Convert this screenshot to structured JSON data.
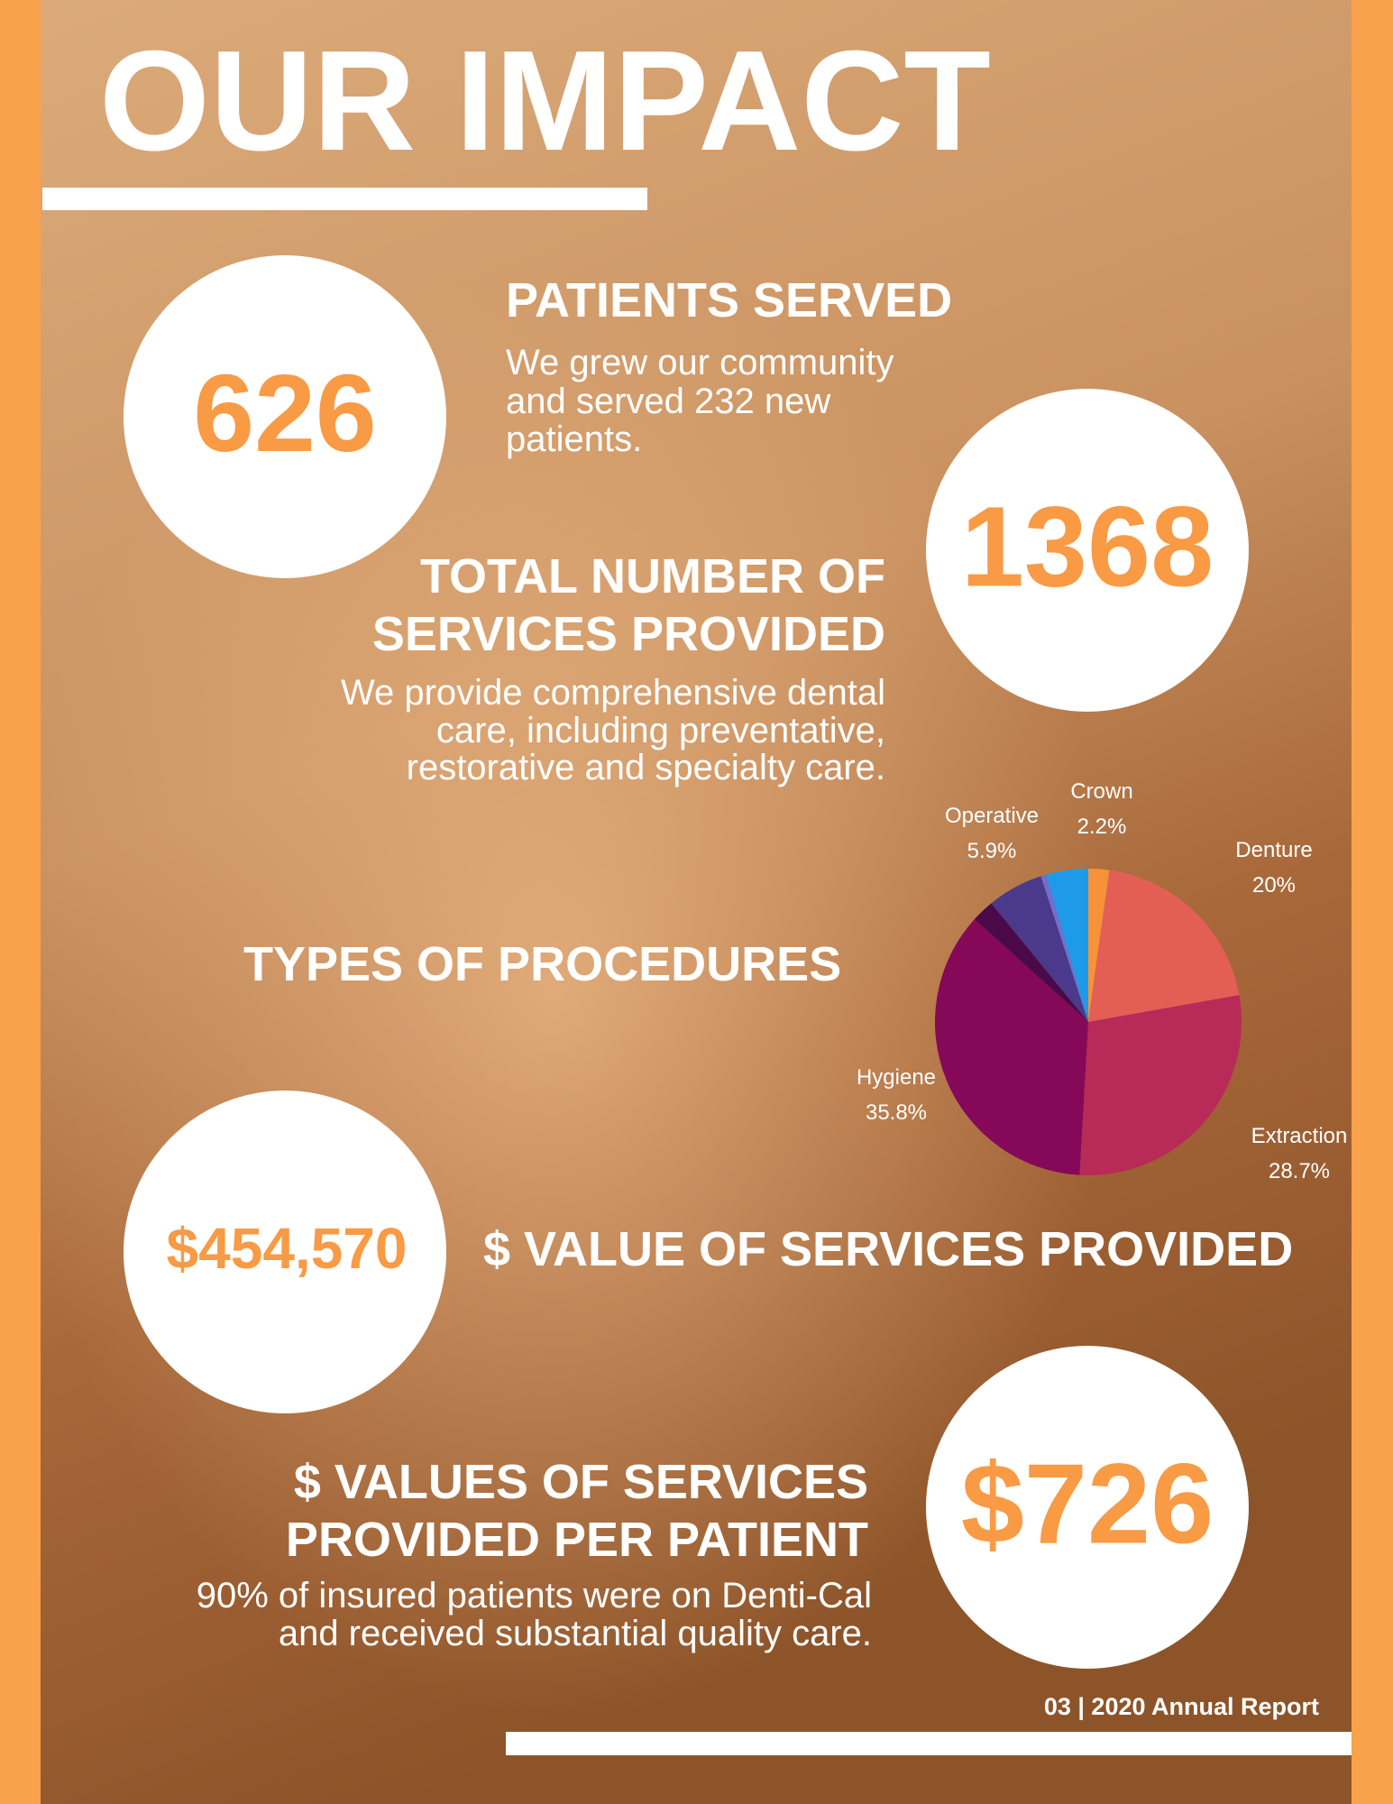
{
  "title": "OUR IMPACT",
  "patients": {
    "number": "626",
    "heading": "PATIENTS SERVED",
    "description": [
      "We grew our community",
      "and served 232 new",
      "patients."
    ]
  },
  "services": {
    "number": "1368",
    "heading": [
      "TOTAL NUMBER OF",
      "SERVICES PROVIDED"
    ],
    "description": [
      "We provide comprehensive dental",
      "care, including preventative,",
      "restorative and specialty care."
    ]
  },
  "chart_data": {
    "type": "pie",
    "title": "TYPES OF PROCEDURES",
    "categories": [
      "Crown",
      "Denture",
      "Extraction",
      "Hygiene",
      null,
      "Operative",
      null,
      null
    ],
    "values": [
      2.2,
      20,
      28.7,
      35.8,
      2.4,
      5.9,
      0.6,
      4.4
    ],
    "value_labels": [
      "2.2%",
      "20%",
      "28.7%",
      "35.8%",
      null,
      "5.9%",
      null,
      null
    ],
    "colors": [
      "#f7923a",
      "#e35f55",
      "#b82a58",
      "#850859",
      "#4a0a4a",
      "#4b3a8c",
      "#6e6fd0",
      "#1e9be8"
    ]
  },
  "value": {
    "number": "$454,570",
    "heading": "$ VALUE OF SERVICES PROVIDED"
  },
  "per_patient": {
    "number": "$726",
    "heading": [
      "$ VALUES OF SERVICES",
      "PROVIDED PER PATIENT"
    ],
    "description": [
      "90% of insured patients were on Denti-Cal",
      "and received substantial quality care."
    ]
  },
  "footer": "03 | 2020 Annual Report"
}
